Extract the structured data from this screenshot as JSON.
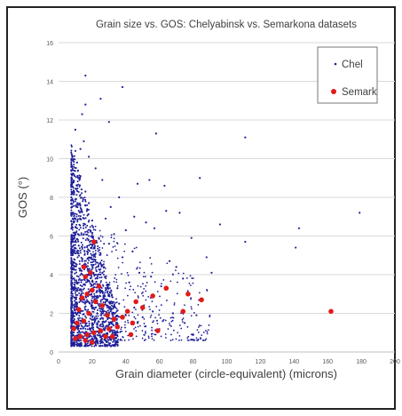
{
  "chart_data": {
    "type": "scatter",
    "title": "Grain size vs. GOS: Chelyabinsk vs. Semarkona datasets",
    "xlabel": "Grain diameter (circle-equivalent) (microns)",
    "ylabel": "GOS (°)",
    "xlim": [
      0,
      200
    ],
    "ylim": [
      0,
      16
    ],
    "x_ticks": [
      "0",
      "20",
      "40",
      "60",
      "80",
      "100",
      "120",
      "140",
      "160",
      "180",
      "200"
    ],
    "y_ticks": [
      "0",
      "2",
      "4",
      "6",
      "8",
      "10",
      "12",
      "14",
      "16"
    ],
    "grid": "horizontal",
    "legend": "top-right",
    "colors": {
      "Chel": "#1f1f99",
      "Semark": "#e01b1b"
    },
    "series": [
      {
        "name": "Chel",
        "marker": "small dot",
        "points": [
          [
            16,
            14.3
          ],
          [
            38,
            13.7
          ],
          [
            25,
            13.1
          ],
          [
            16,
            12.8
          ],
          [
            14,
            12.3
          ],
          [
            30,
            11.9
          ],
          [
            10,
            11.5
          ],
          [
            15,
            10.9
          ],
          [
            13,
            10.5
          ],
          [
            18,
            10.1
          ],
          [
            11,
            9.8
          ],
          [
            22,
            9.5
          ],
          [
            9,
            9.2
          ],
          [
            26,
            8.9
          ],
          [
            84,
            9.0
          ],
          [
            111,
            11.1
          ],
          [
            179,
            7.2
          ],
          [
            143,
            6.4
          ],
          [
            141,
            5.4
          ],
          [
            111,
            5.7
          ],
          [
            96,
            6.6
          ],
          [
            58,
            11.3
          ],
          [
            54,
            8.9
          ],
          [
            47,
            8.7
          ],
          [
            63,
            8.6
          ],
          [
            36,
            8.0
          ],
          [
            72,
            7.2
          ],
          [
            64,
            7.3
          ],
          [
            45,
            7.0
          ],
          [
            52,
            6.7
          ],
          [
            40,
            6.3
          ],
          [
            31,
            7.5
          ],
          [
            28,
            6.9
          ],
          [
            33,
            6.1
          ],
          [
            57,
            6.4
          ],
          [
            79,
            5.9
          ],
          [
            88,
            4.9
          ],
          [
            66,
            4.7
          ],
          [
            44,
            5.2
          ],
          [
            91,
            4.1
          ],
          [
            74,
            3.8
          ],
          [
            70,
            4.4
          ],
          [
            61,
            3.4
          ],
          [
            55,
            3.9
          ],
          [
            48,
            4.1
          ],
          [
            42,
            3.6
          ],
          [
            38,
            4.9
          ],
          [
            35,
            3.3
          ],
          [
            30,
            5.6
          ],
          [
            27,
            4.4
          ],
          [
            24,
            5.9
          ],
          [
            22,
            3.8
          ],
          [
            20,
            6.8
          ],
          [
            18,
            7.7
          ],
          [
            17,
            5.2
          ],
          [
            16,
            8.3
          ],
          [
            15,
            6.1
          ],
          [
            14,
            4.7
          ],
          [
            13,
            9.1
          ],
          [
            12,
            7.3
          ],
          [
            12,
            5.5
          ],
          [
            11,
            8.6
          ],
          [
            11,
            6.4
          ],
          [
            10,
            10.4
          ],
          [
            10,
            7.9
          ],
          [
            10,
            5.1
          ],
          [
            9,
            8.8
          ],
          [
            9,
            6.7
          ],
          [
            9,
            4.3
          ],
          [
            8,
            9.6
          ],
          [
            8,
            7.2
          ],
          [
            8,
            5.8
          ],
          [
            8,
            3.9
          ],
          [
            9,
            3.2
          ],
          [
            10,
            2.8
          ],
          [
            11,
            2.5
          ],
          [
            12,
            3.6
          ],
          [
            13,
            2.9
          ],
          [
            14,
            3.4
          ],
          [
            16,
            2.6
          ],
          [
            18,
            3.1
          ],
          [
            20,
            2.4
          ],
          [
            23,
            2.9
          ],
          [
            26,
            2.2
          ],
          [
            29,
            2.7
          ],
          [
            32,
            2.0
          ],
          [
            36,
            2.5
          ],
          [
            40,
            1.9
          ],
          [
            45,
            2.3
          ],
          [
            50,
            1.8
          ],
          [
            56,
            2.1
          ],
          [
            62,
            1.6
          ],
          [
            68,
            2.0
          ],
          [
            75,
            1.5
          ],
          [
            82,
            1.9
          ],
          [
            23,
            1.5
          ],
          [
            19,
            1.2
          ],
          [
            15,
            1.0
          ],
          [
            12,
            0.8
          ],
          [
            10,
            0.6
          ],
          [
            9,
            0.5
          ],
          [
            8,
            0.4
          ]
        ]
      },
      {
        "name": "Semark",
        "marker": "large dot",
        "points": [
          [
            21,
            5.7
          ],
          [
            15,
            4.4
          ],
          [
            19,
            4.1
          ],
          [
            16,
            3.9
          ],
          [
            24,
            3.4
          ],
          [
            20,
            3.2
          ],
          [
            17,
            3.0
          ],
          [
            14,
            2.8
          ],
          [
            22,
            2.6
          ],
          [
            26,
            2.4
          ],
          [
            12,
            2.2
          ],
          [
            18,
            2.0
          ],
          [
            29,
            1.9
          ],
          [
            33,
            1.7
          ],
          [
            38,
            1.8
          ],
          [
            44,
            1.5
          ],
          [
            50,
            2.3
          ],
          [
            46,
            2.6
          ],
          [
            41,
            2.1
          ],
          [
            35,
            1.3
          ],
          [
            30,
            1.2
          ],
          [
            25,
            1.1
          ],
          [
            21,
            1.0
          ],
          [
            17,
            0.9
          ],
          [
            13,
            0.8
          ],
          [
            10,
            0.7
          ],
          [
            9,
            1.2
          ],
          [
            11,
            1.5
          ],
          [
            15,
            1.6
          ],
          [
            16,
            0.6
          ],
          [
            20,
            0.5
          ],
          [
            28,
            0.8
          ],
          [
            32,
            0.8
          ],
          [
            43,
            0.9
          ],
          [
            59,
            1.1
          ],
          [
            74,
            2.1
          ],
          [
            77,
            3.0
          ],
          [
            85,
            2.7
          ],
          [
            162,
            2.1
          ],
          [
            64,
            3.3
          ],
          [
            56,
            2.9
          ]
        ]
      }
    ]
  }
}
